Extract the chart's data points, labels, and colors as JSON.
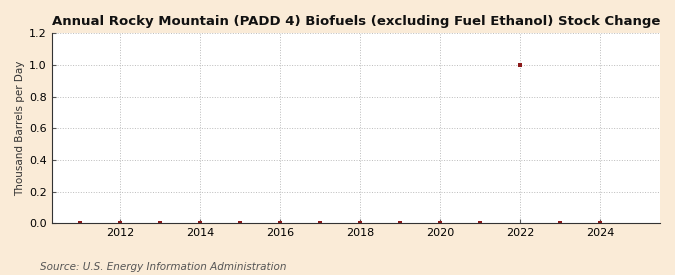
{
  "title": "Annual Rocky Mountain (PADD 4) Biofuels (excluding Fuel Ethanol) Stock Change",
  "ylabel": "Thousand Barrels per Day",
  "source": "Source: U.S. Energy Information Administration",
  "background_color": "#faebd7",
  "plot_background_color": "#ffffff",
  "xlim": [
    2010.3,
    2025.5
  ],
  "ylim": [
    0.0,
    1.2
  ],
  "yticks": [
    0.0,
    0.2,
    0.4,
    0.6,
    0.8,
    1.0,
    1.2
  ],
  "xticks": [
    2012,
    2014,
    2016,
    2018,
    2020,
    2022,
    2024
  ],
  "data_x": [
    2011,
    2012,
    2013,
    2014,
    2015,
    2016,
    2017,
    2018,
    2019,
    2020,
    2021,
    2022,
    2023,
    2024
  ],
  "data_y": [
    0.0,
    0.0,
    0.0,
    0.0,
    0.0,
    0.0,
    0.0,
    0.0,
    0.0,
    0.0,
    0.0,
    1.0,
    0.0,
    0.0
  ],
  "marker_color": "#8b1a1a",
  "marker_size": 3.5,
  "grid_color": "#bbbbbb",
  "title_fontsize": 9.5,
  "axis_label_fontsize": 7.5,
  "tick_fontsize": 8,
  "source_fontsize": 7.5
}
